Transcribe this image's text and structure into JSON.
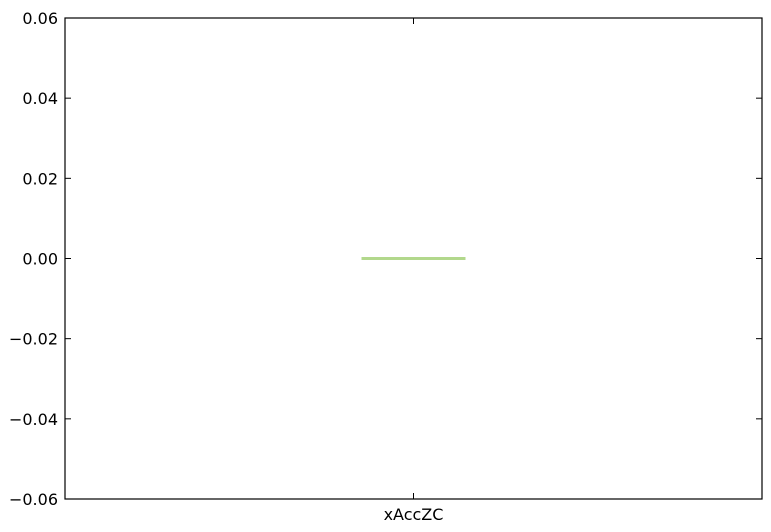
{
  "chart_data": {
    "type": "box",
    "categories": [
      "xAccZC"
    ],
    "series": [
      {
        "values": [
          {
            "min": 0.0,
            "q1": 0.0,
            "median": 0.0,
            "q3": 0.0,
            "max": 0.0
          }
        ],
        "median_color": "#b2d88c"
      }
    ],
    "ylim": [
      -0.06,
      0.06
    ],
    "yticks": [
      -0.06,
      -0.04,
      -0.02,
      0.0,
      0.02,
      0.04,
      0.06
    ],
    "ytick_labels": [
      "−0.06",
      "−0.04",
      "−0.02",
      "0.00",
      "0.02",
      "0.04",
      "0.06"
    ],
    "grid": false,
    "legend": "none"
  }
}
